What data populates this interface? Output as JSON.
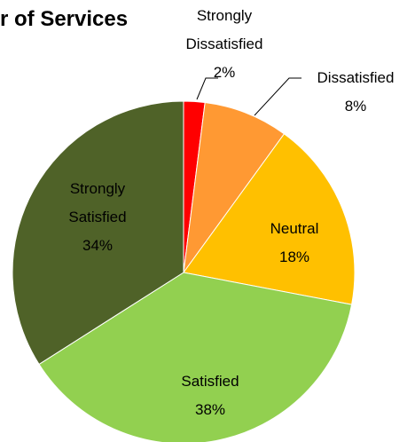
{
  "chart_data": {
    "type": "pie",
    "title": "r of Services",
    "categories": [
      "Strongly Dissatisfied",
      "Dissatisfied",
      "Neutral",
      "Satisfied",
      "Strongly Satisfied"
    ],
    "values": [
      2,
      8,
      18,
      38,
      34
    ],
    "value_labels": [
      "2%",
      "8%",
      "18%",
      "38%",
      "34%"
    ],
    "colors": [
      "#ff0000",
      "#ff9933",
      "#ffc000",
      "#92d050",
      "#4f6228"
    ]
  }
}
